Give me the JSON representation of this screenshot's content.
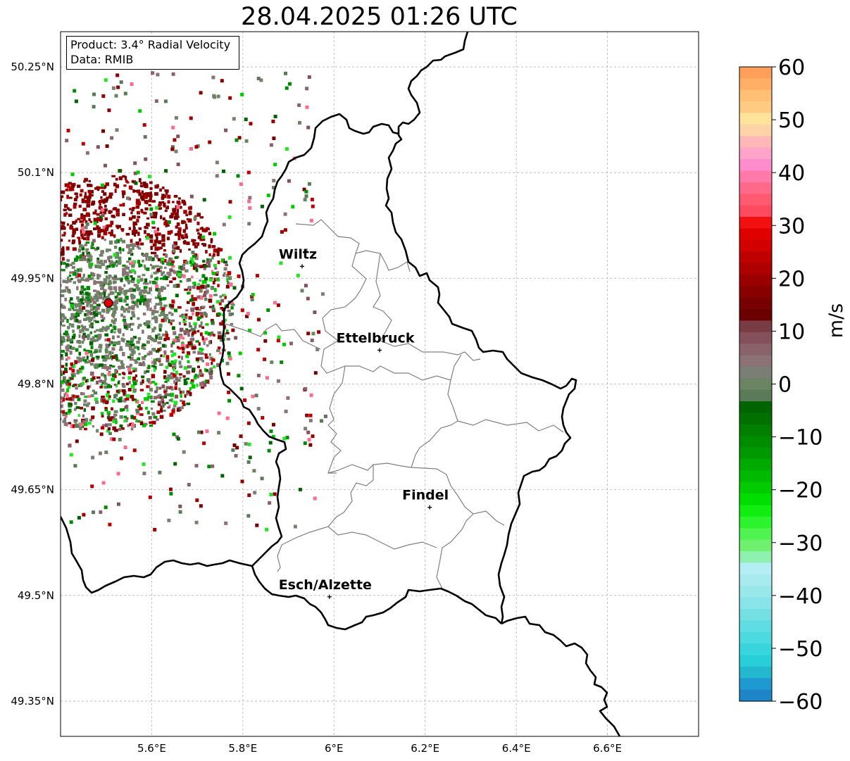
{
  "title": "28.04.2025 01:26 UTC",
  "info": {
    "product": "Product: 3.4° Radial Velocity",
    "data": "Data: RMIB"
  },
  "map": {
    "lon_range": [
      5.4,
      6.8
    ],
    "lat_range": [
      49.3,
      50.3
    ],
    "lon_ticks": [
      "5.6°E",
      "5.8°E",
      "6°E",
      "6.2°E",
      "6.4°E",
      "6.6°E"
    ],
    "lat_ticks": [
      "50.25°N",
      "50.1°N",
      "49.95°N",
      "49.8°N",
      "49.65°N",
      "49.5°N",
      "49.35°N"
    ],
    "grid": "dashed",
    "radar_site": {
      "lon": 5.505,
      "lat": 49.915,
      "color": "#e00000"
    },
    "cities": [
      {
        "name": "Wiltz",
        "lon": 5.93,
        "lat": 49.967
      },
      {
        "name": "Ettelbruck",
        "lon": 6.1,
        "lat": 49.848
      },
      {
        "name": "Findel",
        "lon": 6.21,
        "lat": 49.625
      },
      {
        "name": "Esch/Alzette",
        "lon": 5.99,
        "lat": 49.498
      }
    ]
  },
  "colorbar": {
    "label": "m/s",
    "min": -60,
    "max": 60,
    "tick_labels": [
      "60",
      "50",
      "40",
      "30",
      "20",
      "10",
      "0",
      "−10",
      "−20",
      "−30",
      "−40",
      "−50",
      "−60"
    ],
    "colors_top_to_bottom": [
      "#ff9f5a",
      "#ffb066",
      "#ffbf75",
      "#ffcb82",
      "#ffe39b",
      "#ffd3a8",
      "#ffb7b8",
      "#ffa3c8",
      "#ff8ccc",
      "#ff7aa8",
      "#ff6a8a",
      "#ff5a70",
      "#ff4a60",
      "#f21010",
      "#e00000",
      "#d20000",
      "#c00000",
      "#ae0000",
      "#9a0000",
      "#880000",
      "#780000",
      "#6a0000",
      "#7a3c44",
      "#84515a",
      "#8a626c",
      "#8a7275",
      "#7a7e74",
      "#6a8464",
      "#5a7a58",
      "#006400",
      "#007000",
      "#007f00",
      "#008c00",
      "#009a00",
      "#00aa00",
      "#00ba00",
      "#00cc00",
      "#00de00",
      "#10ee10",
      "#2cf42c",
      "#50f450",
      "#6ff06f",
      "#90f0b0",
      "#b4eef4",
      "#a8eaee",
      "#98e8ea",
      "#88e4e8",
      "#74e0e4",
      "#60dde2",
      "#4cd9df",
      "#38d5dd",
      "#28cfd9",
      "#22b8d0",
      "#1e9ad0",
      "#1e86c8"
    ]
  }
}
